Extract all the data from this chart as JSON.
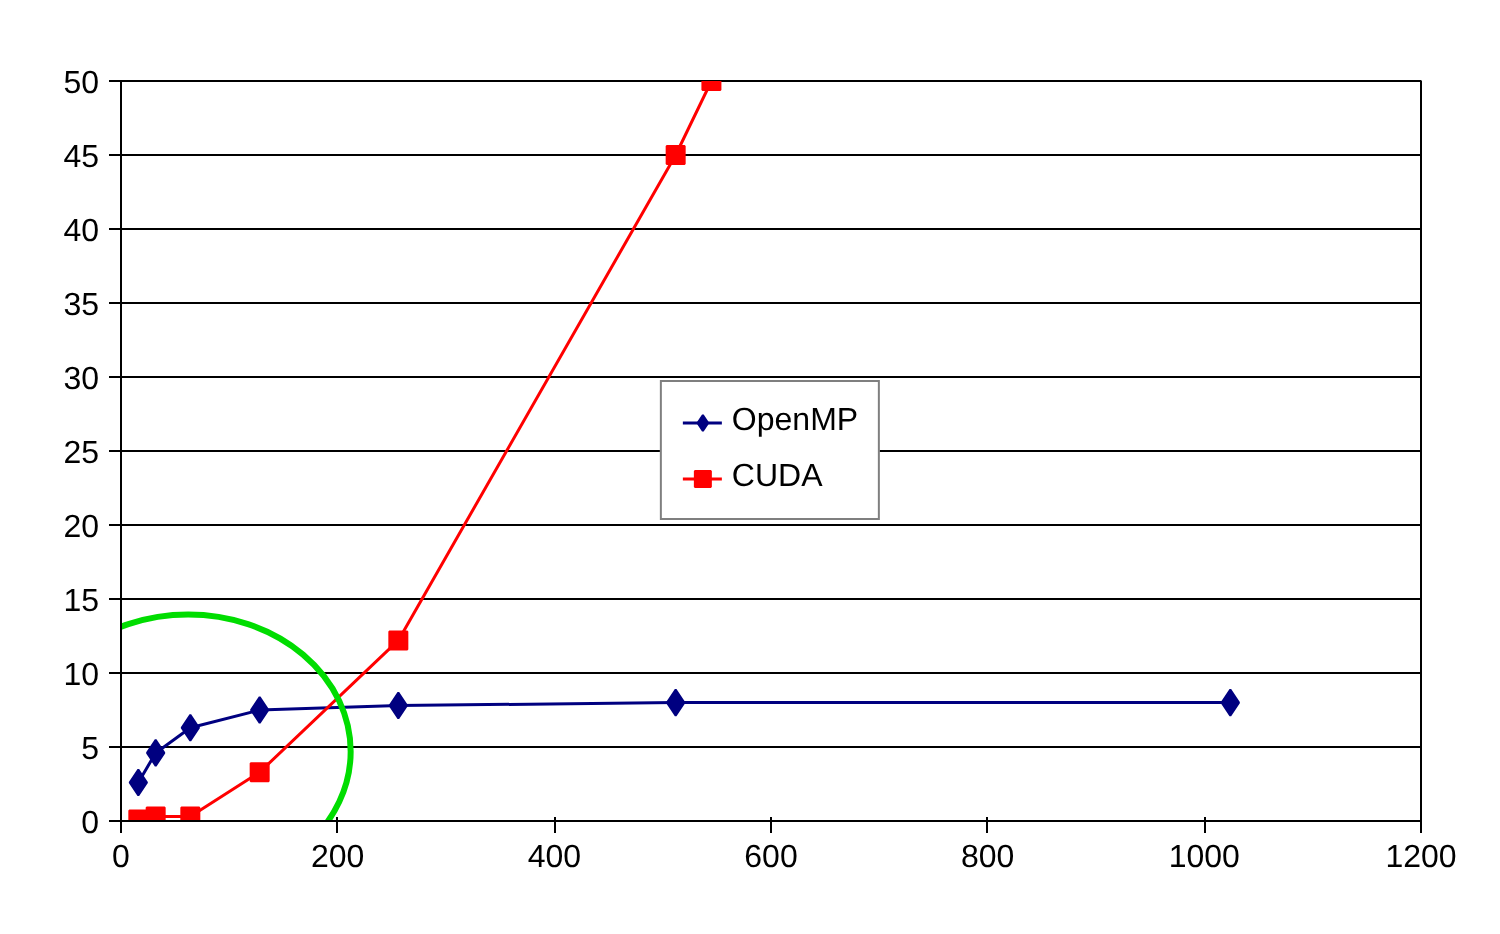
{
  "chart_data": {
    "type": "line",
    "line_style": "solid",
    "grid": "y",
    "legend": "center",
    "xlim": [
      0,
      1200
    ],
    "xticks": [
      0,
      200,
      400,
      600,
      800,
      1000,
      1200
    ],
    "ylim": [
      0,
      50
    ],
    "yticks": [
      0,
      5,
      10,
      15,
      20,
      25,
      30,
      35,
      40,
      45,
      50
    ],
    "series": [
      {
        "name": "OpenMP",
        "color": "#000080",
        "marker": "diamond",
        "x": [
          16,
          32,
          64,
          128,
          256,
          512,
          1024
        ],
        "values": [
          2.6,
          4.6,
          6.3,
          7.5,
          7.8,
          8.0,
          8.0
        ]
      },
      {
        "name": "CUDA",
        "color": "#ff0000",
        "marker": "square",
        "x": [
          16,
          32,
          64,
          128,
          256,
          512,
          545
        ],
        "values": [
          0.1,
          0.3,
          0.3,
          3.3,
          12.2,
          45,
          50
        ]
      }
    ]
  }
}
